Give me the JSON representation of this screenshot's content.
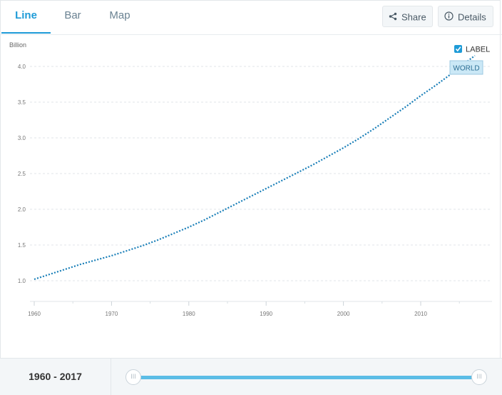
{
  "tabs": [
    {
      "label": "Line",
      "active": true
    },
    {
      "label": "Bar",
      "active": false
    },
    {
      "label": "Map",
      "active": false
    }
  ],
  "buttons": {
    "share_label": "Share",
    "details_label": "Details",
    "share_icon": "share-icon",
    "details_icon": "info-icon"
  },
  "label_toggle": {
    "text": "LABEL",
    "checked": true
  },
  "series_tag": "WORLD",
  "footer": {
    "range_text": "1960 - 2017",
    "handle_glyph": "III"
  },
  "colors": {
    "accent": "#1e9bd7",
    "line": "#1a7fb8",
    "track": "#5bbde6"
  },
  "chart_data": {
    "type": "line",
    "ylabel": "Billion",
    "xlabel": "",
    "title": "",
    "xlim": [
      1960,
      2017
    ],
    "ylim": [
      1.0,
      4.0
    ],
    "x_ticks": [
      "1960",
      "1970",
      "1980",
      "1990",
      "2000",
      "2010"
    ],
    "y_ticks": [
      "1.0",
      "1.5",
      "2.0",
      "2.5",
      "3.0",
      "3.5",
      "4.0"
    ],
    "grid": true,
    "series": [
      {
        "name": "WORLD",
        "x": [
          1960,
          1962,
          1964,
          1966,
          1968,
          1970,
          1972,
          1974,
          1976,
          1978,
          1980,
          1982,
          1984,
          1986,
          1988,
          1990,
          1992,
          1994,
          1996,
          1998,
          2000,
          2002,
          2004,
          2006,
          2008,
          2010,
          2012,
          2014,
          2016,
          2017
        ],
        "values": [
          1.02,
          1.09,
          1.16,
          1.23,
          1.29,
          1.35,
          1.42,
          1.49,
          1.57,
          1.66,
          1.75,
          1.85,
          1.96,
          2.07,
          2.18,
          2.29,
          2.4,
          2.51,
          2.62,
          2.74,
          2.86,
          2.99,
          3.13,
          3.28,
          3.43,
          3.59,
          3.74,
          3.9,
          4.07,
          4.15
        ]
      }
    ]
  }
}
